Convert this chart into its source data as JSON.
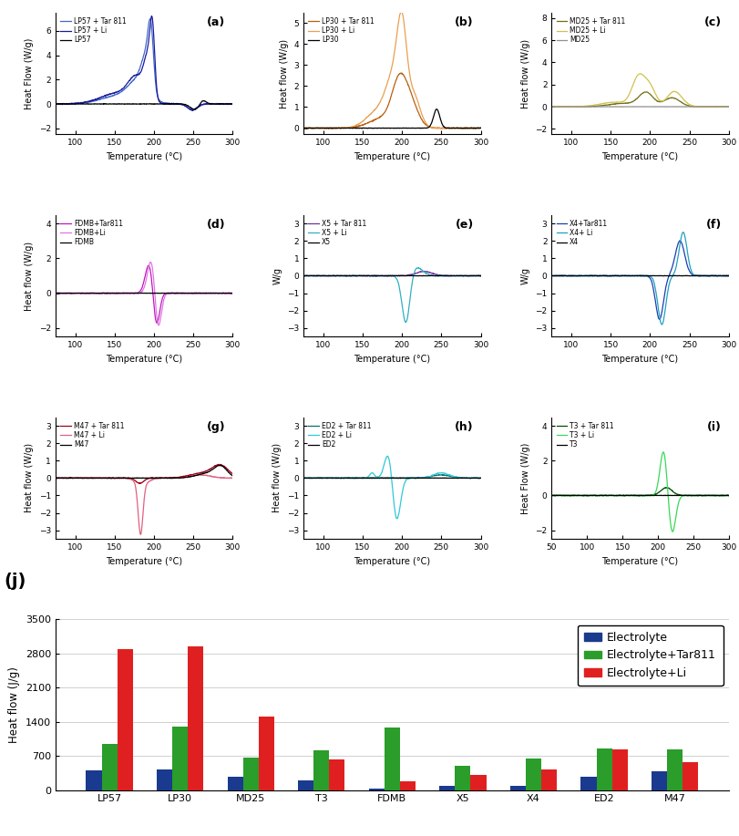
{
  "bar_categories": [
    "LP57",
    "LP30",
    "MD25",
    "T3",
    "FDMB",
    "X5",
    "X4",
    "ED2",
    "M47"
  ],
  "bar_electrolyte": [
    400,
    430,
    280,
    200,
    20,
    90,
    80,
    270,
    380
  ],
  "bar_electrolyte_tar": [
    950,
    1300,
    660,
    820,
    1280,
    490,
    640,
    860,
    840
  ],
  "bar_electrolyte_li": [
    2900,
    2950,
    1500,
    620,
    170,
    310,
    430,
    840,
    570
  ],
  "bar_colors": [
    "#1a3a8f",
    "#2a9d2a",
    "#e02020"
  ],
  "bar_legend": [
    "Electrolyte",
    "Electrolyte+Tar811",
    "Electrolyte+Li"
  ],
  "bar_ylabel": "Heat flow (J/g)",
  "bar_ylim": [
    0,
    3500
  ],
  "bar_yticks": [
    0,
    700,
    1400,
    2100,
    2800,
    3500
  ],
  "panel_labels": [
    "(a)",
    "(b)",
    "(c)",
    "(d)",
    "(e)",
    "(f)",
    "(g)",
    "(h)",
    "(i)"
  ],
  "panel_j_label": "(j)",
  "fig_background": "#ffffff",
  "legends_a": [
    "LP57 + Tar 811",
    "LP57 + Li",
    "LP57"
  ],
  "legends_b": [
    "LP30 + Tar 811",
    "LP30 + Li",
    "LP30"
  ],
  "legends_c": [
    "MD25 + Tar 811",
    "MD25 + Li",
    "MD25"
  ],
  "legends_d": [
    "FDMB+Tar811",
    "FDMB+Li",
    "FDMB"
  ],
  "legends_e": [
    "X5 + Tar 811",
    "X5 + Li",
    "X5"
  ],
  "legends_f": [
    "X4+Tar811",
    "X4+ Li",
    "X4"
  ],
  "legends_g": [
    "M47 + Tar 811",
    "M47 + Li",
    "M47"
  ],
  "legends_h": [
    "ED2 + Tar 811",
    "ED2 + Li",
    "ED2"
  ],
  "legends_i": [
    "T3 + Tar 811",
    "T3 + Li",
    "T3"
  ],
  "ylabel_a": "Heat Flow (W/g)",
  "ylabel_b": "Heat flow (W/g)",
  "ylabel_c": "Heat flow (W/g)",
  "ylabel_d": "Heat flow (W/g)",
  "ylabel_e": "W/g",
  "ylabel_f": "W/g",
  "ylabel_g": "Heat flow (W/g)",
  "ylabel_h": "Heat flow (W/g)",
  "ylabel_i": "Heat Flow (W/g)",
  "xlabel_common": "Temperature (°C)"
}
